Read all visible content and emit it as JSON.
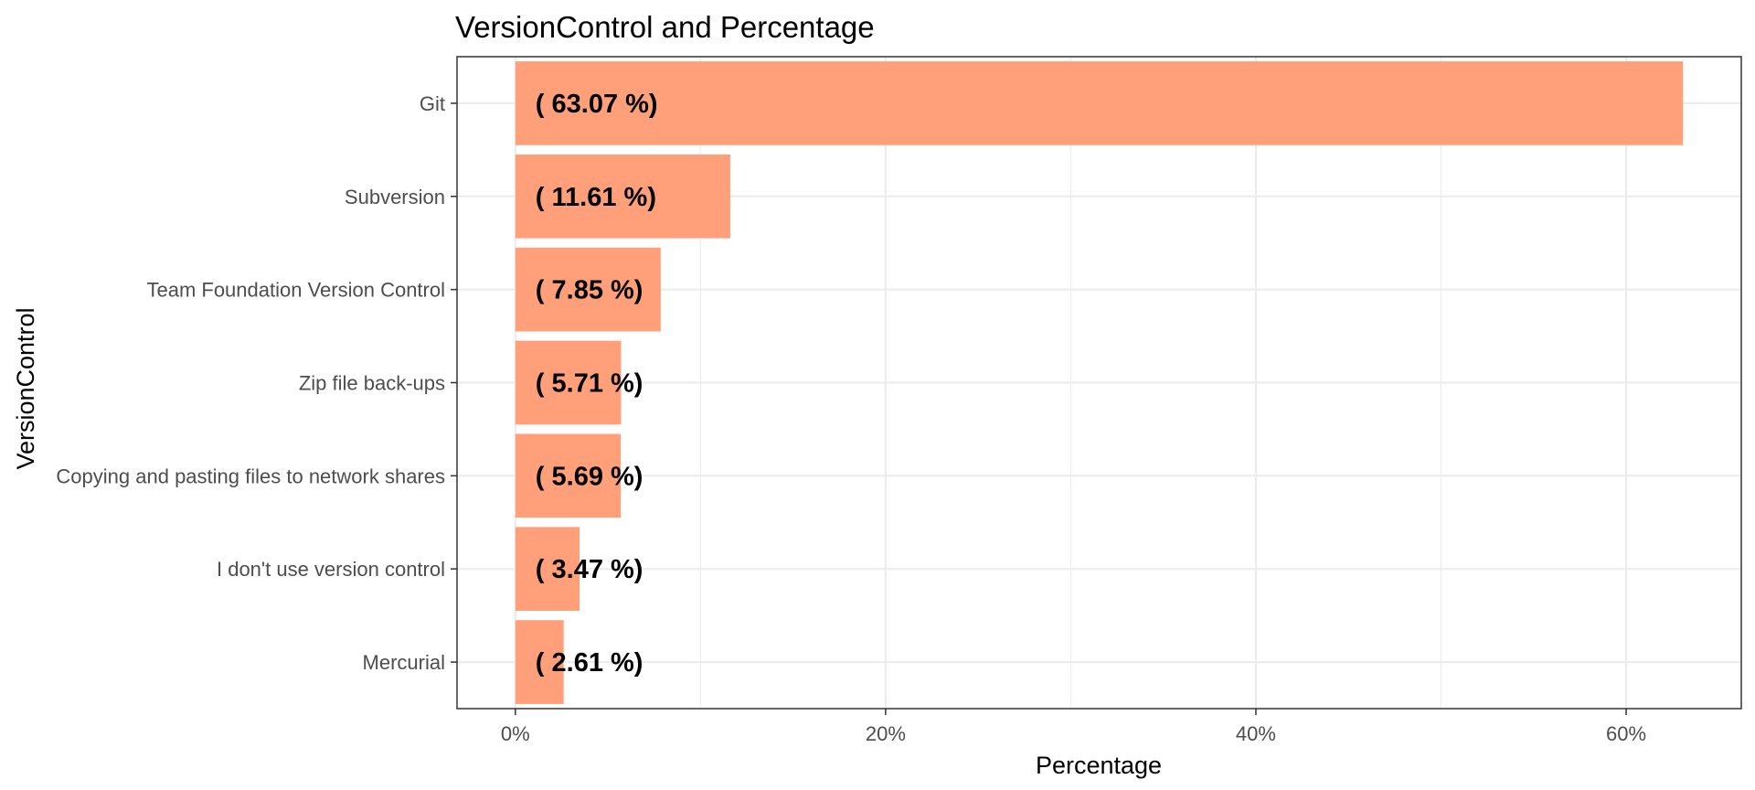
{
  "chart_data": {
    "type": "bar",
    "orientation": "horizontal",
    "title": "VersionControl and Percentage",
    "xlabel": "Percentage",
    "ylabel": "VersionControl",
    "categories": [
      "Git",
      "Subversion",
      "Team Foundation Version Control",
      "Zip file back-ups",
      "Copying and pasting files to network shares",
      "I don't use version control",
      "Mercurial"
    ],
    "values": [
      63.07,
      11.61,
      7.85,
      5.71,
      5.69,
      3.47,
      2.61
    ],
    "data_labels": [
      "( 63.07 %)",
      "( 11.61 %)",
      "( 7.85 %)",
      "( 5.71 %)",
      "( 5.69 %)",
      "( 3.47 %)",
      "( 2.61 %)"
    ],
    "xlim": [
      -3.15,
      66.22
    ],
    "xticks": [
      0,
      20,
      40,
      60
    ],
    "xtick_labels": [
      "0%",
      "20%",
      "40%",
      "60%"
    ],
    "grid": true,
    "legend": "none",
    "colors": {
      "bar": "#ffa07a",
      "grid": "#ebebeb",
      "panel_border": "#333333"
    }
  }
}
